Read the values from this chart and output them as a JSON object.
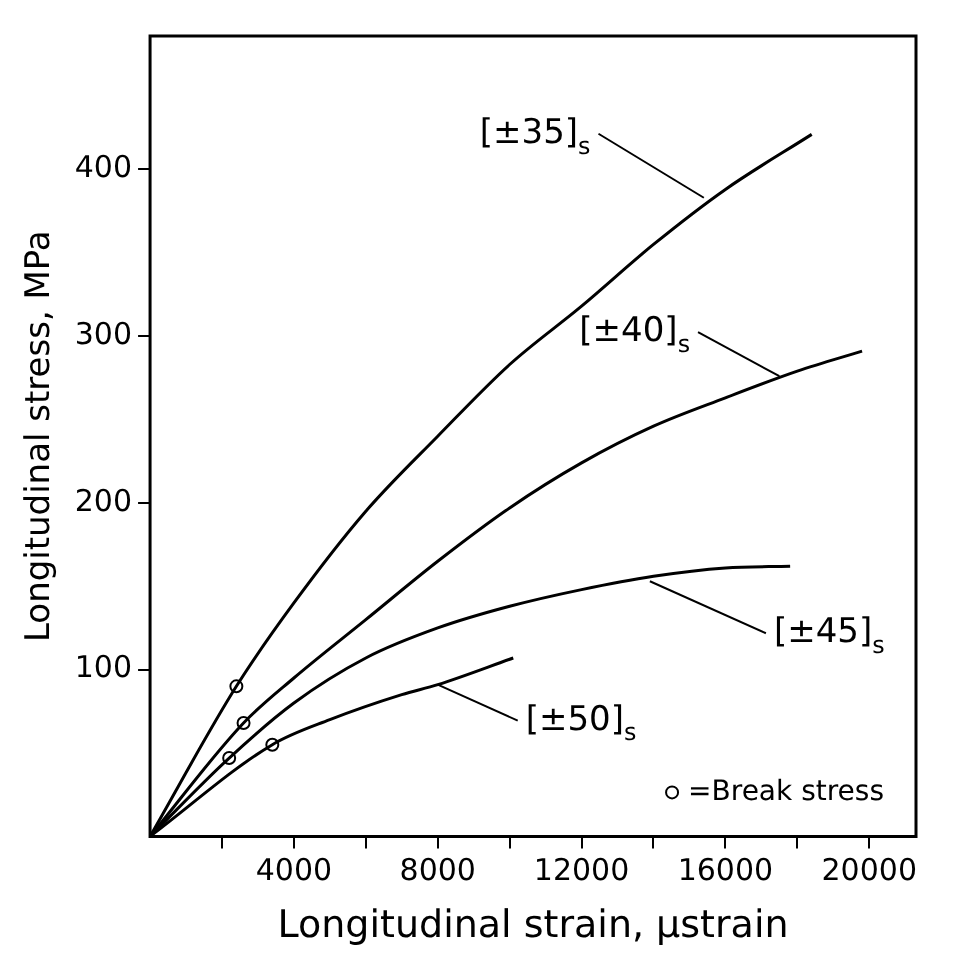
{
  "chart_data": {
    "type": "line",
    "xlabel": "Longitudinal strain, μstrain",
    "ylabel": "Longitudinal stress, MPa",
    "xlim": [
      0,
      21300
    ],
    "ylim": [
      0,
      480
    ],
    "xticks": [
      {
        "value": 2000,
        "label": null
      },
      4000,
      {
        "value": 6000,
        "label": null
      },
      8000,
      {
        "value": 10000,
        "label": null
      },
      12000,
      {
        "value": 14000,
        "label": null
      },
      16000,
      {
        "value": 18000,
        "label": null
      },
      20000
    ],
    "yticks": [
      100,
      200,
      300,
      400
    ],
    "grid": false,
    "legend": "bottom right",
    "line_style": "solid",
    "series": [
      {
        "color": "#000000",
        "x": [
          0,
          2400,
          4000,
          6000,
          8000,
          10000,
          12000,
          14000,
          16000,
          18400
        ],
        "values": [
          0,
          90,
          140,
          195,
          240,
          283,
          318,
          355,
          388,
          421
        ]
      },
      {
        "color": "#000000",
        "x": [
          0,
          2600,
          4000,
          6000,
          8000,
          10000,
          12000,
          14000,
          16000,
          18000,
          19800
        ],
        "values": [
          0,
          68,
          95,
          130,
          165,
          197,
          224,
          246,
          263,
          279,
          291
        ]
      },
      {
        "color": "#000000",
        "x": [
          0,
          2200,
          4000,
          6000,
          8000,
          10000,
          12000,
          14000,
          16000,
          17800
        ],
        "values": [
          0,
          47,
          80,
          107,
          125,
          138,
          148,
          156,
          161,
          162
        ]
      },
      {
        "color": "#000000",
        "x": [
          0,
          3400,
          5000,
          7000,
          8000,
          10100
        ],
        "values": [
          0,
          55,
          70,
          85,
          91,
          107
        ]
      },
      {
        "type": "scatter",
        "name": "=Break stress",
        "marker": "circle",
        "color": "#000000",
        "x": [
          2400,
          2600,
          2200,
          3400
        ],
        "values": [
          90,
          68,
          47,
          55
        ]
      }
    ],
    "annotations": [
      {
        "text": "[±35]$_{s}$",
        "x": 15400,
        "y": 383
      },
      {
        "text": "[±40]$_{s}$",
        "x": 17500,
        "y": 276
      },
      {
        "text": "[±45]$_{s}$",
        "x": 13900,
        "y": 153
      },
      {
        "text": "[±50]$_{s}$",
        "x": 8000,
        "y": 91
      }
    ]
  }
}
